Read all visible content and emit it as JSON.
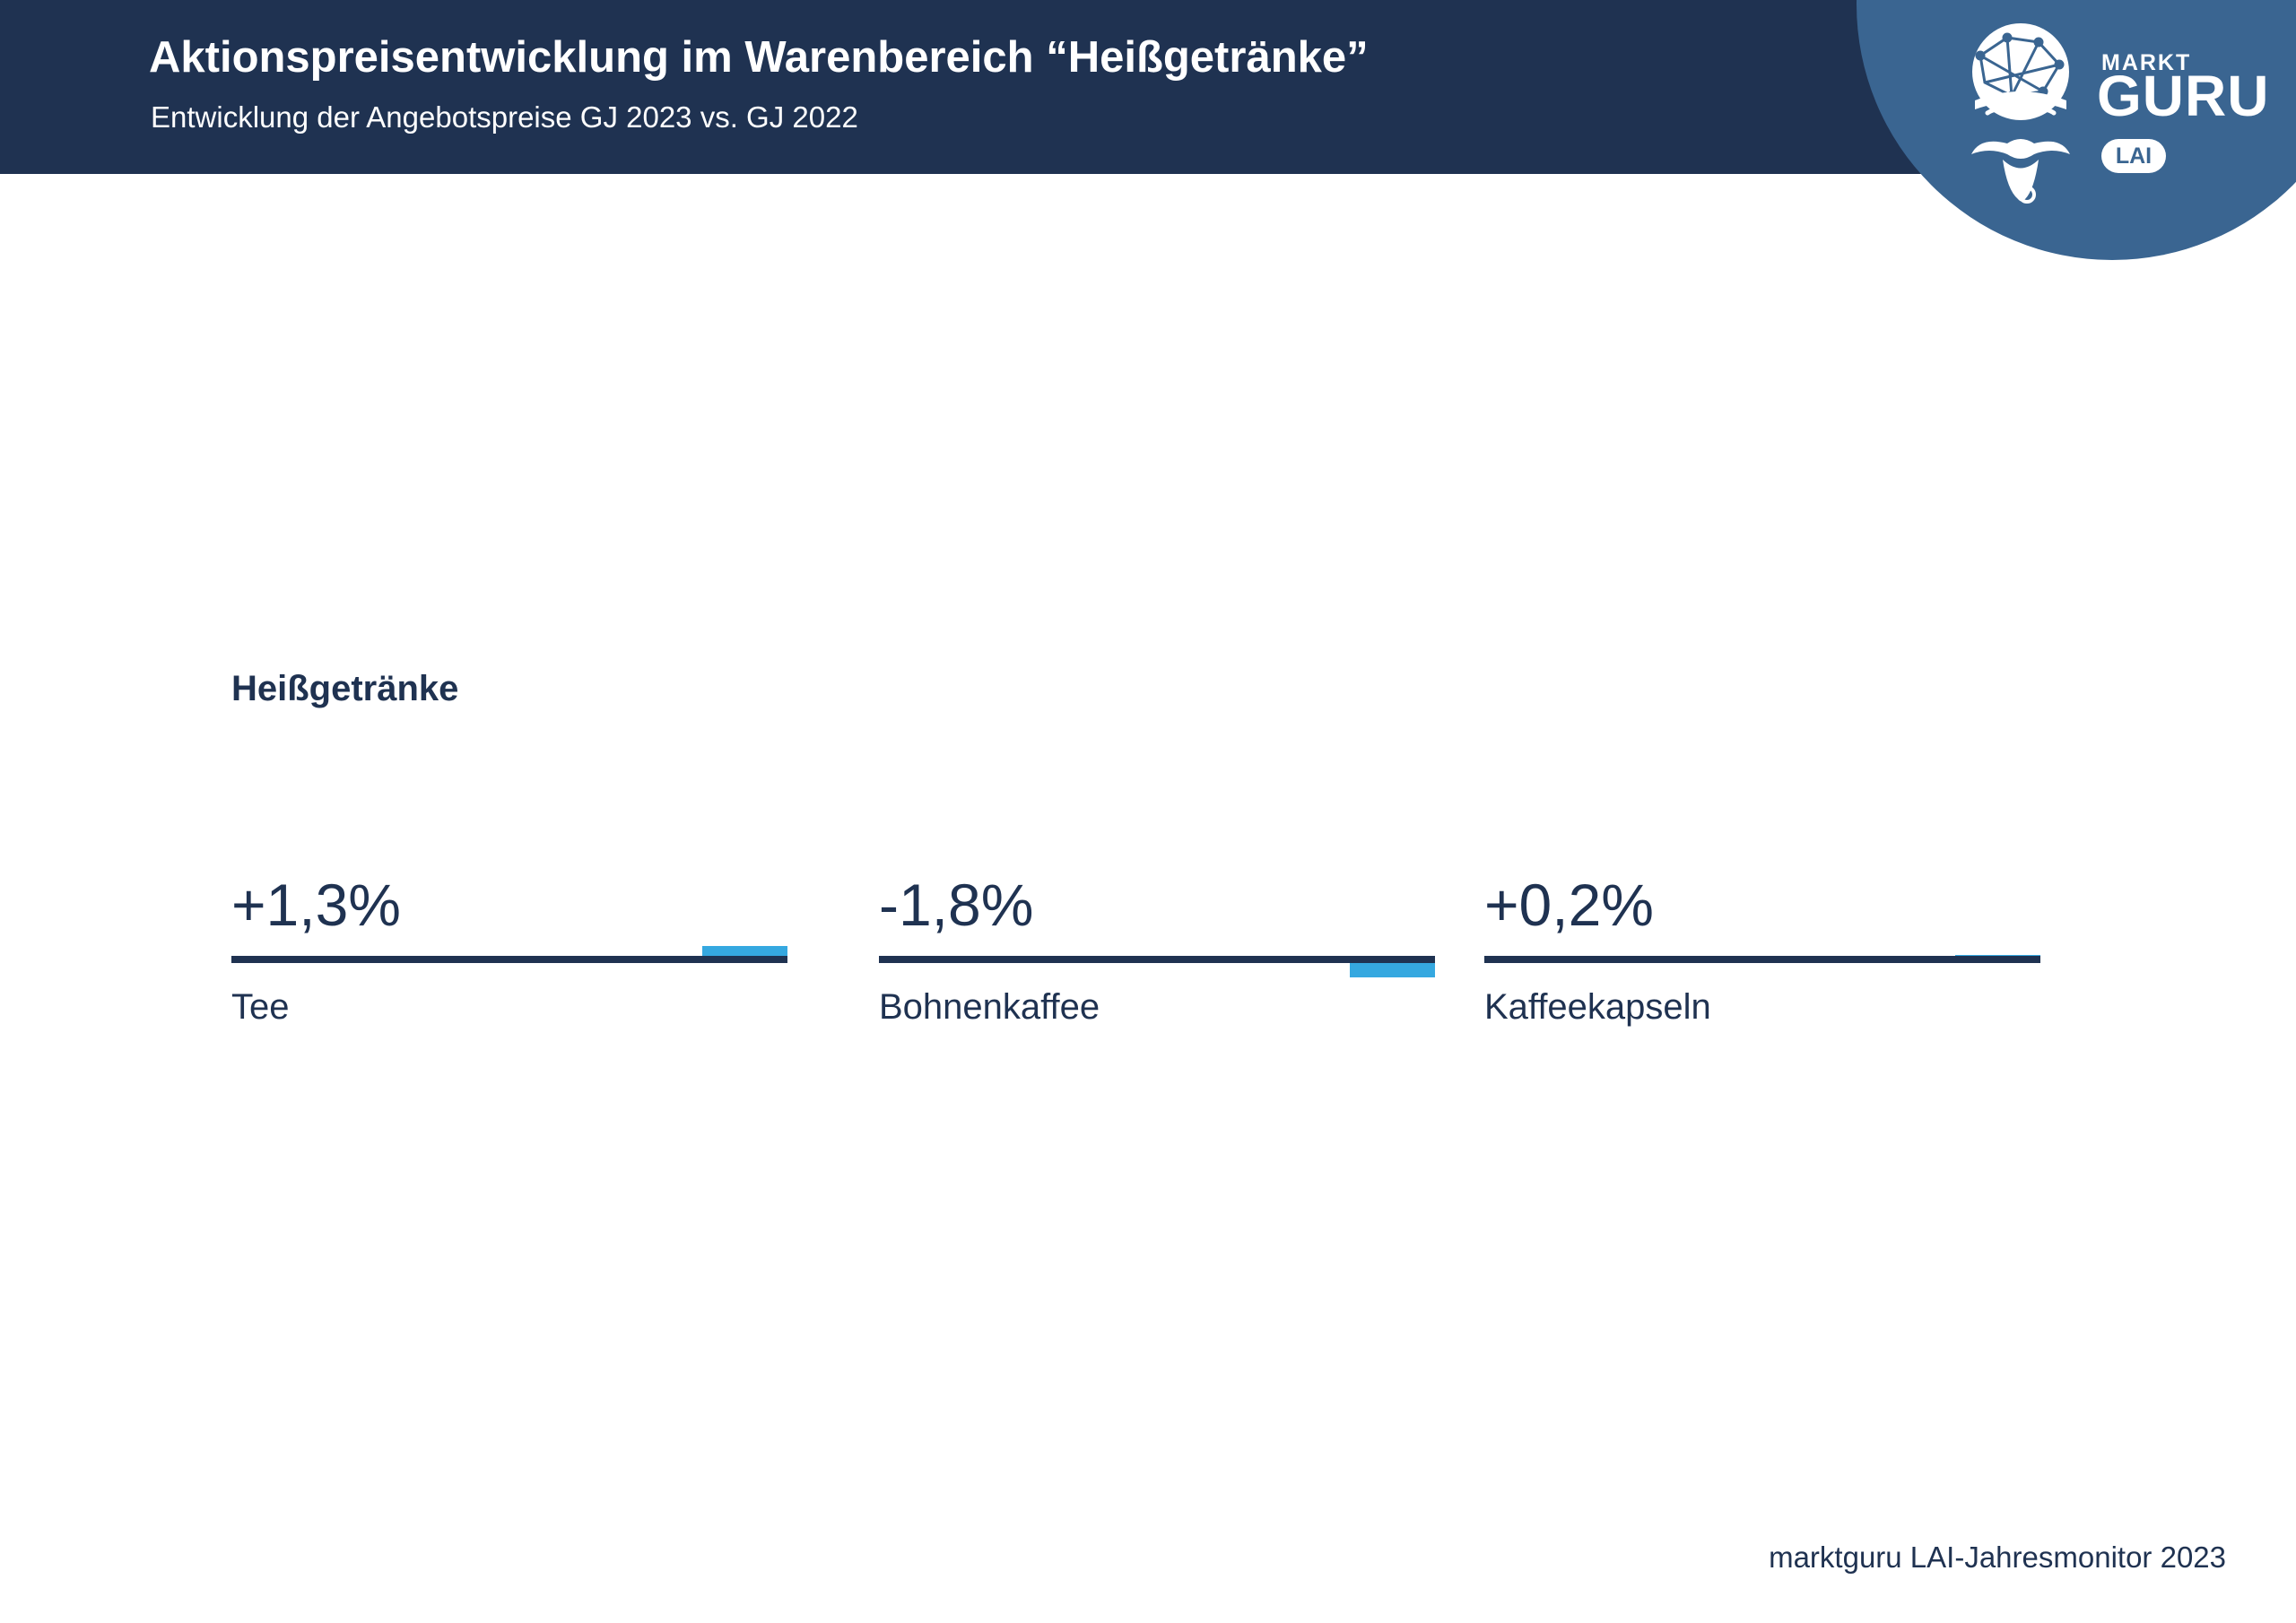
{
  "header": {
    "title": "Aktionspreisentwicklung im Warenbereich “Heißgetränke”",
    "subtitle": "Entwicklung der Angebotspreise GJ 2023 vs. GJ 2022"
  },
  "logo": {
    "markt": "MARKT",
    "guru": "GURU",
    "badge": "LAI",
    "icon": "guru-mascot-icon"
  },
  "section": {
    "heading": "Heißgetränke"
  },
  "chart_data": {
    "type": "bar",
    "categories": [
      "Tee",
      "Bohnenkaffee",
      "Kaffeekapseln"
    ],
    "values": [
      1.3,
      -1.8,
      0.2
    ],
    "value_labels": [
      "+1,3%",
      "-1,8%",
      "+0,2%"
    ],
    "unit": "%",
    "title": "Heißgetränke",
    "colors": {
      "baseline": "#1f3251",
      "bar": "#35a8e0"
    }
  },
  "footer": {
    "source": "marktguru LAI-Jahresmonitor 2023"
  },
  "colors": {
    "navy": "#1f3251",
    "logo_blue": "#3a6591",
    "accent": "#35a8e0"
  }
}
